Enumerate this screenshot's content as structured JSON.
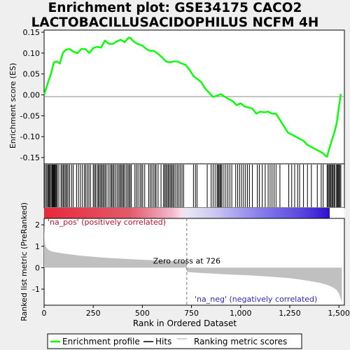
{
  "title_line1": "Enrichment plot: GSE34175 CACO2",
  "title_line2": "LACTOBACILLUSACIDOPHILUS NCFM 4H",
  "chart_data": [
    {
      "type": "line",
      "ylabel": "Enrichment score (ES)",
      "ylim": [
        -0.165,
        0.155
      ],
      "yticks": [
        -0.15,
        -0.1,
        -0.05,
        0.0,
        0.05,
        0.1,
        0.15
      ],
      "ytick_labels": [
        "-0.15",
        "-0.10",
        "-0.05",
        "0.00",
        "0.05",
        "0.10",
        "0.15"
      ],
      "xlim": [
        0,
        1528
      ],
      "series": [
        {
          "name": "Enrichment profile",
          "color": "#00ff00",
          "x": [
            0,
            10,
            20,
            35,
            50,
            65,
            80,
            95,
            110,
            130,
            150,
            170,
            190,
            210,
            230,
            250,
            270,
            290,
            310,
            330,
            350,
            370,
            390,
            410,
            430,
            440,
            455,
            475,
            500,
            520,
            540,
            560,
            580,
            600,
            620,
            640,
            660,
            680,
            700,
            720,
            740,
            760,
            780,
            800,
            820,
            840,
            860,
            880,
            900,
            920,
            940,
            960,
            980,
            1000,
            1020,
            1040,
            1060,
            1080,
            1100,
            1120,
            1140,
            1160,
            1180,
            1200,
            1220,
            1240,
            1260,
            1280,
            1300,
            1320,
            1340,
            1360,
            1380,
            1400,
            1420,
            1430,
            1440,
            1450,
            1460,
            1470,
            1480,
            1490,
            1500,
            1510
          ],
          "y": [
            0.0,
            0.015,
            0.03,
            0.05,
            0.078,
            0.08,
            0.075,
            0.1,
            0.108,
            0.11,
            0.103,
            0.1,
            0.11,
            0.11,
            0.1,
            0.112,
            0.115,
            0.113,
            0.13,
            0.122,
            0.122,
            0.128,
            0.132,
            0.126,
            0.137,
            0.136,
            0.128,
            0.122,
            0.118,
            0.11,
            0.105,
            0.105,
            0.098,
            0.09,
            0.08,
            0.078,
            0.08,
            0.08,
            0.075,
            0.072,
            0.06,
            0.045,
            0.038,
            0.03,
            0.015,
            0.005,
            -0.005,
            -0.002,
            0.002,
            -0.005,
            -0.01,
            -0.015,
            -0.025,
            -0.02,
            -0.028,
            -0.03,
            -0.033,
            -0.045,
            -0.04,
            -0.042,
            -0.04,
            -0.045,
            -0.045,
            -0.06,
            -0.075,
            -0.09,
            -0.095,
            -0.1,
            -0.105,
            -0.11,
            -0.12,
            -0.125,
            -0.13,
            -0.135,
            -0.14,
            -0.145,
            -0.148,
            -0.13,
            -0.115,
            -0.1,
            -0.085,
            -0.065,
            -0.03,
            0.002
          ]
        }
      ]
    },
    {
      "type": "table",
      "name": "Hits",
      "hits": [
        5,
        12,
        18,
        22,
        26,
        31,
        36,
        41,
        45,
        48,
        52,
        55,
        58,
        63,
        67,
        75,
        86,
        92,
        98,
        104,
        110,
        116,
        122,
        130,
        140,
        148,
        165,
        175,
        185,
        195,
        205,
        212,
        220,
        228,
        236,
        250,
        256,
        262,
        270,
        276,
        282,
        288,
        294,
        300,
        306,
        312,
        320,
        330,
        338,
        344,
        350,
        356,
        364,
        372,
        380,
        386,
        392,
        398,
        404,
        410,
        418,
        426,
        432,
        438,
        444,
        462,
        470,
        478,
        488,
        495,
        502,
        512,
        532,
        540,
        548,
        556,
        564,
        570,
        580,
        595,
        608,
        614,
        620,
        626,
        632,
        638,
        644,
        650,
        656,
        662,
        670,
        678,
        686,
        694,
        702,
        710,
        760,
        770,
        778,
        830,
        850,
        860,
        870,
        880,
        885,
        890,
        895,
        900,
        905,
        915,
        925,
        935,
        945,
        955,
        975,
        985,
        995,
        1005,
        1015,
        1025,
        1035,
        1045,
        1060,
        1085,
        1095,
        1110,
        1125,
        1140,
        1150,
        1160,
        1170,
        1180,
        1200,
        1245,
        1260,
        1275,
        1290,
        1300,
        1320,
        1340,
        1360,
        1390,
        1410,
        1420,
        1440,
        1445,
        1450,
        1455,
        1460,
        1465,
        1470,
        1475,
        1480,
        1488,
        1492,
        1496,
        1500,
        1505,
        1510
      ]
    },
    {
      "type": "area",
      "name": "Ranking metric scores",
      "ylabel": "Ranked list metric (PreRanked)",
      "xlabel": "Rank in Ordered Dataset",
      "ylim": [
        -1.75,
        2.3
      ],
      "yticks": [
        -1,
        0,
        1,
        2
      ],
      "ytick_labels": [
        "-1",
        "0",
        "1",
        "2"
      ],
      "xticks": [
        0,
        250,
        500,
        750,
        1000,
        1250,
        1500
      ],
      "xtick_labels": [
        "0",
        "250",
        "500",
        "750",
        "1,000",
        "1,250",
        "1,500"
      ],
      "x": [
        0,
        3,
        8,
        15,
        25,
        40,
        60,
        100,
        150,
        200,
        300,
        400,
        500,
        600,
        700,
        725,
        727,
        760,
        850,
        950,
        1050,
        1150,
        1250,
        1300,
        1350,
        1400,
        1440,
        1470,
        1490,
        1500,
        1510,
        1515
      ],
      "values": [
        2.1,
        1.2,
        1.0,
        0.9,
        0.82,
        0.76,
        0.72,
        0.66,
        0.6,
        0.55,
        0.47,
        0.42,
        0.37,
        0.33,
        0.3,
        0.29,
        -0.2,
        -0.22,
        -0.27,
        -0.32,
        -0.36,
        -0.42,
        -0.49,
        -0.55,
        -0.62,
        -0.7,
        -0.8,
        -0.92,
        -1.05,
        -1.2,
        -1.45,
        -1.6
      ],
      "zero_cross_label": "Zero cross at 726",
      "zero_cross_x": 726,
      "pos_label": "'na_pos' (positively correlated)",
      "neg_label": "'na_neg' (negatively correlated)"
    }
  ],
  "legend": {
    "items": [
      {
        "label": "Enrichment profile",
        "color": "#00ff00"
      },
      {
        "label": "Hits",
        "color": "#000000"
      },
      {
        "label": "Ranking metric scores",
        "color": "#c0c0c0"
      }
    ]
  }
}
